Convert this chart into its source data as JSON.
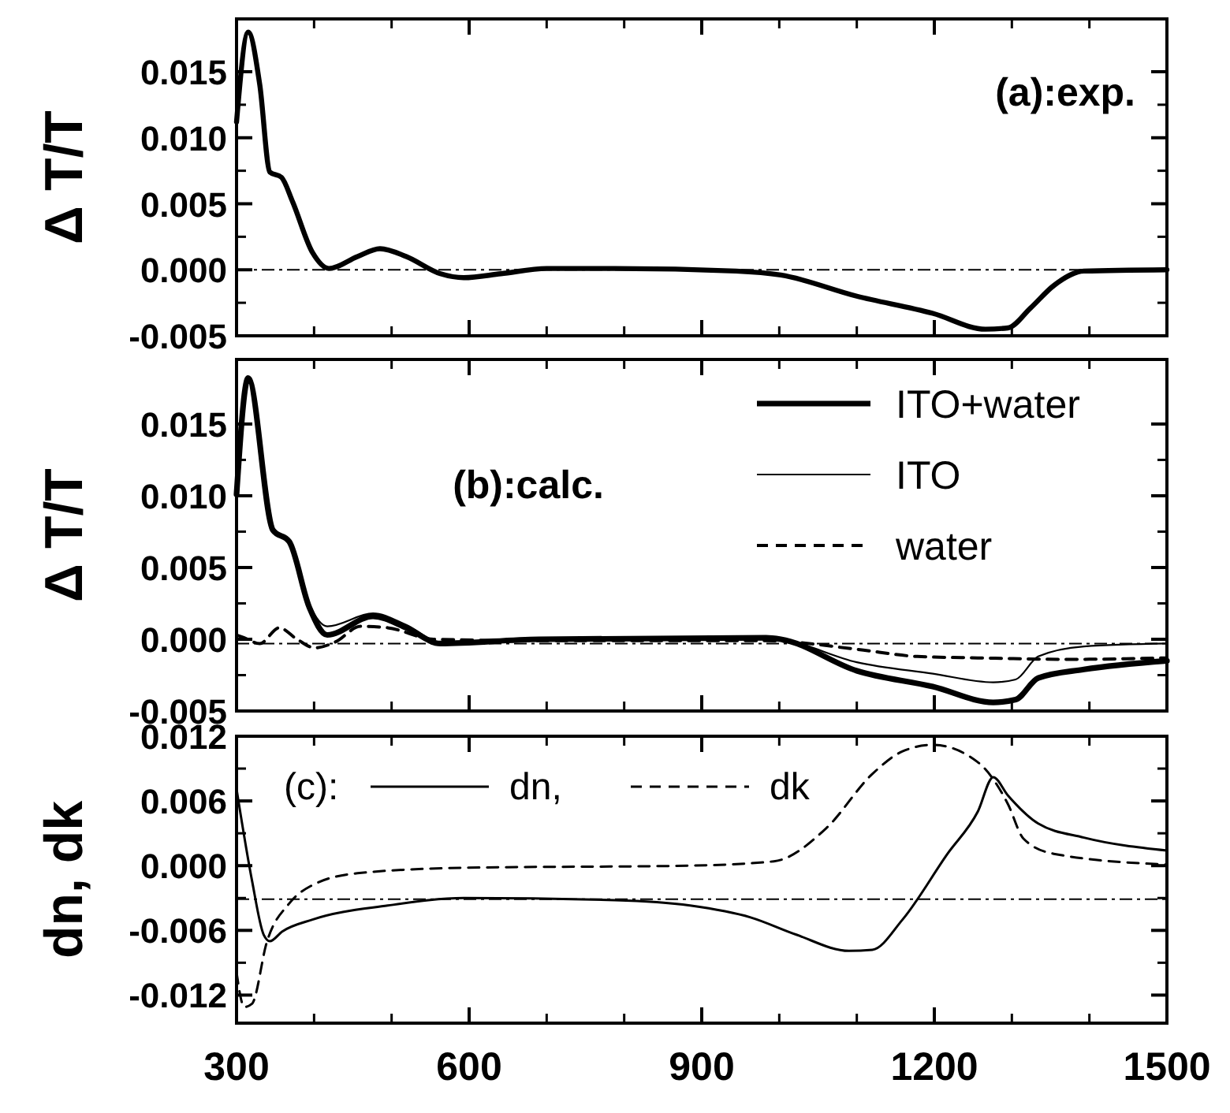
{
  "chart_data": [
    {
      "type": "line",
      "ylabel": "Δ T/T",
      "annotations": [
        "(a):exp."
      ],
      "tick_labels": "y",
      "xlim": [
        300,
        1500
      ],
      "xticks": [
        300,
        600,
        900,
        1200,
        1500
      ],
      "ylim": [
        -0.005,
        0.019
      ],
      "yticks": [
        {
          "value": -0.005,
          "label": "-0.005"
        },
        {
          "value": 0,
          "label": "0.000"
        },
        {
          "value": 0.005,
          "label": "0.005"
        },
        {
          "value": 0.01,
          "label": "0.010"
        },
        {
          "value": 0.015,
          "label": "0.015"
        }
      ],
      "ref_lines": [
        {
          "axis": "y",
          "value": 0,
          "color": "#000000"
        }
      ],
      "legend": false,
      "grid": false,
      "series": [
        {
          "color": "#000000",
          "line_style": "solid",
          "x": [
            300,
            315,
            330,
            343,
            358,
            372,
            398,
            419,
            456,
            485,
            519,
            563,
            593,
            641,
            700,
            788,
            944,
            1002,
            1100,
            1198,
            1266,
            1295,
            1324,
            1354,
            1393,
            1500
          ],
          "values": [
            0.0112,
            0.018,
            0.014,
            0.0074,
            0.007,
            0.0052,
            0.0013,
            0.0001,
            0.001,
            0.0016,
            0.001,
            -0.0003,
            -0.0006,
            -0.0003,
            0.0001,
            0.0001,
            -0.0001,
            -0.0004,
            -0.002,
            -0.0033,
            -0.0045,
            -0.0044,
            -0.0029,
            -0.0012,
            -0.0001,
            0
          ]
        }
      ]
    },
    {
      "type": "line",
      "ylabel": "Δ T/T",
      "annotations": [
        "(b):calc."
      ],
      "tick_labels": "y",
      "xlim": [
        300,
        1500
      ],
      "xticks": [
        300,
        600,
        900,
        1200,
        1500
      ],
      "ylim": [
        -0.005,
        0.0195
      ],
      "yticks": [
        {
          "value": -0.005,
          "label": "-0.005"
        },
        {
          "value": 0,
          "label": "0.000"
        },
        {
          "value": 0.005,
          "label": "0.005"
        },
        {
          "value": 0.01,
          "label": "0.010"
        },
        {
          "value": 0.015,
          "label": "0.015"
        }
      ],
      "ref_lines": [
        {
          "axis": "y",
          "value": -0.0003,
          "color": "#000000"
        }
      ],
      "legend": "top right",
      "grid": false,
      "series": [
        {
          "name": "ITO+water",
          "color": "#000000",
          "line_style": "solid",
          "x": [
            300,
            315,
            347,
            368,
            394,
            417,
            476,
            519,
            563,
            690,
            983,
            1002,
            1100,
            1198,
            1276,
            1305,
            1334,
            1393,
            1500
          ],
          "values": [
            0.0101,
            0.0182,
            0.0076,
            0.0068,
            0.0022,
            0.0003,
            0.0016,
            0.0008,
            -0.0003,
            0,
            0.0001,
            0,
            -0.0022,
            -0.0033,
            -0.0044,
            -0.0042,
            -0.0027,
            -0.0021,
            -0.0015
          ]
        },
        {
          "name": "ITO",
          "color": "#000000",
          "line_style": "solid",
          "x": [
            300,
            315,
            347,
            368,
            394,
            417,
            476,
            519,
            563,
            690,
            983,
            1002,
            1100,
            1198,
            1276,
            1305,
            1334,
            1393,
            1500
          ],
          "values": [
            0.0101,
            0.0182,
            0.0076,
            0.0068,
            0.0024,
            0.0009,
            0.0018,
            0.001,
            -0.0002,
            0,
            0.0001,
            0,
            -0.0016,
            -0.0024,
            -0.003,
            -0.0028,
            -0.0012,
            -0.0005,
            -0.0003
          ]
        },
        {
          "name": "water",
          "color": "#000000",
          "line_style": "dashed",
          "x": [
            300,
            310,
            330,
            355,
            378,
            401,
            427,
            460,
            495,
            554,
            690,
            983,
            1100,
            1178,
            1256,
            1373,
            1500
          ],
          "values": [
            0.0003,
            0.0001,
            -0.0003,
            0.0008,
            0,
            -0.0006,
            -0.0002,
            0.0009,
            0.0008,
            0,
            -0.0001,
            -0.0001,
            -0.0007,
            -0.0012,
            -0.0013,
            -0.0014,
            -0.0013
          ]
        }
      ]
    },
    {
      "type": "line",
      "ylabel": "dn, dk",
      "legend_title": "(c):",
      "xlim": [
        300,
        1500
      ],
      "xticks": [
        300,
        600,
        900,
        1200,
        1500
      ],
      "ylim": [
        -0.0146,
        0.012
      ],
      "yticks": [
        {
          "value": -0.012,
          "label": "-0.012"
        },
        {
          "value": -0.006,
          "label": "-0.006"
        },
        {
          "value": 0,
          "label": "0.000"
        },
        {
          "value": 0.006,
          "label": "0.006"
        },
        {
          "value": 0.012,
          "label": "0.012"
        }
      ],
      "ref_lines": [
        {
          "axis": "y",
          "value": -0.0031,
          "color": "#000000"
        }
      ],
      "legend": "top left",
      "grid": false,
      "series": [
        {
          "name": "dn,",
          "color": "#000000",
          "line_style": "solid",
          "x": [
            300,
            320,
            335,
            343,
            359,
            398,
            495,
            593,
            788,
            885,
            963,
            1022,
            1090,
            1120,
            1159,
            1217,
            1256,
            1276,
            1295,
            1334,
            1393,
            1500
          ],
          "values": [
            0.0071,
            -0.0014,
            -0.0064,
            -0.007,
            -0.0061,
            -0.005,
            -0.0037,
            -0.003,
            -0.0032,
            -0.0037,
            -0.0048,
            -0.0064,
            -0.0079,
            -0.0078,
            -0.005,
            0.0011,
            0.005,
            0.0082,
            0.0065,
            0.0039,
            0.0026,
            0.0014
          ]
        },
        {
          "name": "dk",
          "color": "#000000",
          "line_style": "dashed",
          "x": [
            300,
            310,
            320,
            339,
            368,
            398,
            456,
            593,
            885,
            993,
            1061,
            1120,
            1159,
            1198,
            1256,
            1295,
            1315,
            1354,
            1500
          ],
          "values": [
            -0.0099,
            -0.0131,
            -0.0128,
            -0.0071,
            -0.0035,
            -0.0018,
            -0.0007,
            -0.0002,
            0,
            0.0004,
            0.0035,
            0.0085,
            0.0106,
            0.0112,
            0.0096,
            0.0057,
            0.0025,
            0.0011,
            0.0001
          ]
        }
      ]
    }
  ]
}
